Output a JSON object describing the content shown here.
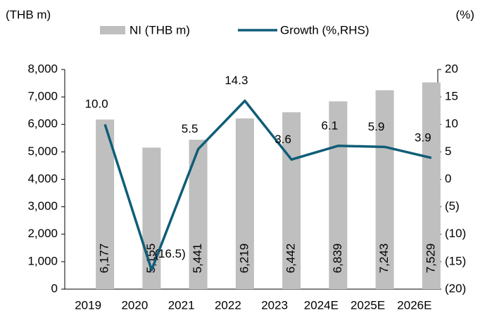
{
  "chart_data": {
    "type": "bar_line",
    "y_axis_label": "(THB m)",
    "y2_axis_label": "(%)",
    "categories": [
      "2019",
      "2020",
      "2021",
      "2022",
      "2023",
      "2024E",
      "2025E",
      "2026E"
    ],
    "series": [
      {
        "name": "NI (THB m)",
        "type": "bar",
        "color": "#bfbfbf",
        "values": [
          6177,
          5155,
          5441,
          6219,
          6442,
          6839,
          7243,
          7529
        ],
        "value_labels": [
          "6,177",
          "5,155",
          "5,441",
          "6,219",
          "6,442",
          "6,839",
          "7,243",
          "7,529"
        ]
      },
      {
        "name": "Growth (%,RHS)",
        "type": "line",
        "axis": "y2",
        "color": "#0f5d78",
        "values": [
          10.0,
          -16.5,
          5.5,
          14.3,
          3.6,
          6.1,
          5.9,
          3.9
        ],
        "value_labels": [
          "10.0",
          "(16.5)",
          "5.5",
          "14.3",
          "3.6",
          "6.1",
          "5.9",
          "3.9"
        ]
      }
    ],
    "ylim": [
      0,
      8000
    ],
    "yticks": [
      0,
      {
        "value": 1000,
        "label": "1,000"
      },
      {
        "value": 2000,
        "label": "2,000"
      },
      {
        "value": 3000,
        "label": "3,000"
      },
      {
        "value": 4000,
        "label": "4,000"
      },
      {
        "value": 5000,
        "label": "5,000"
      },
      {
        "value": 6000,
        "label": "6,000"
      },
      {
        "value": 7000,
        "label": "7,000"
      },
      {
        "value": 8000,
        "label": "8,000"
      }
    ],
    "y2lim": [
      -20,
      20
    ],
    "y2ticks": [
      {
        "value": -20,
        "label": "(20)"
      },
      {
        "value": -15,
        "label": "(15)"
      },
      {
        "value": -10,
        "label": "(10)"
      },
      {
        "value": -5,
        "label": "(5)"
      },
      0,
      5,
      10,
      15,
      20
    ],
    "legend": "top"
  }
}
